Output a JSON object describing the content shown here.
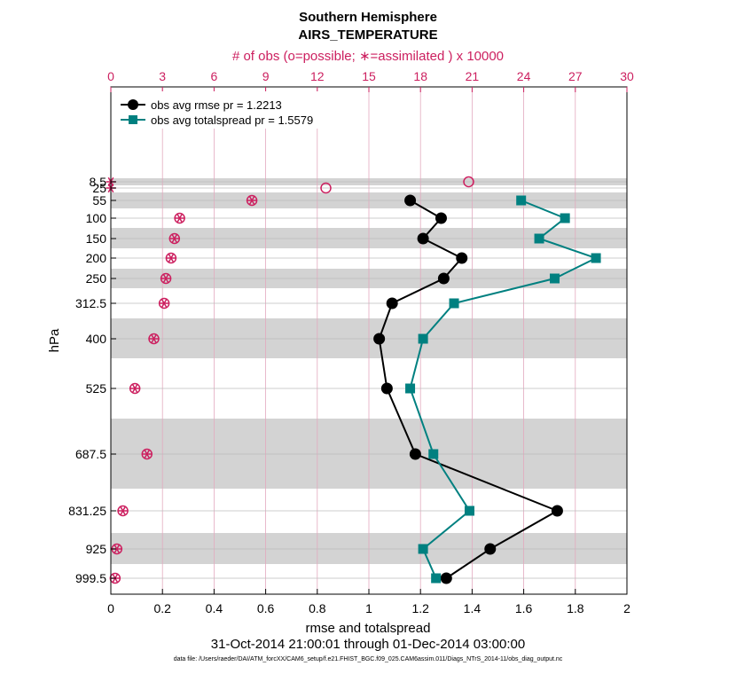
{
  "chart_data": {
    "type": "line",
    "title": "Southern Hemisphere",
    "subtitle": "AIRS_TEMPERATURE",
    "xlabel": "rmse and totalspread",
    "ylabel": "hPa",
    "xlim": [
      0,
      2
    ],
    "x_ticks": [
      "0",
      "0.2",
      "0.4",
      "0.6",
      "0.8",
      "1",
      "1.2",
      "1.4",
      "1.6",
      "1.8",
      "2"
    ],
    "top_axis": {
      "label": "# of obs (o=possible; ∗=assimilated ) x 10000",
      "lim": [
        0,
        30
      ],
      "ticks": [
        "0",
        "3",
        "6",
        "9",
        "12",
        "15",
        "18",
        "21",
        "24",
        "27",
        "30"
      ],
      "color": "#cc1f5f"
    },
    "levels": [
      "8.5",
      "25",
      "55",
      "100",
      "150",
      "200",
      "250",
      "312.5",
      "400",
      "525",
      "687.5",
      "831.25",
      "925",
      "999.5"
    ],
    "series": [
      {
        "name": "obs avg rmse pr = 1.2213",
        "color": "#000000",
        "marker": "circle",
        "levels": [
          "55",
          "100",
          "150",
          "200",
          "250",
          "312.5",
          "400",
          "525",
          "687.5",
          "831.25",
          "925",
          "999.5"
        ],
        "values": [
          1.16,
          1.28,
          1.21,
          1.36,
          1.29,
          1.09,
          1.04,
          1.07,
          1.18,
          1.73,
          1.47,
          1.3
        ]
      },
      {
        "name": "obs avg totalspread pr = 1.5579",
        "color": "#008080",
        "marker": "square",
        "levels": [
          "55",
          "100",
          "150",
          "200",
          "250",
          "312.5",
          "400",
          "525",
          "687.5",
          "831.25",
          "925",
          "999.5"
        ],
        "values": [
          1.59,
          1.76,
          1.66,
          1.88,
          1.72,
          1.33,
          1.21,
          1.16,
          1.25,
          1.39,
          1.21,
          1.26
        ]
      }
    ],
    "obs_counts": {
      "possible": {
        "levels": [
          "8.5",
          "25",
          "55",
          "100",
          "150",
          "200",
          "250",
          "312.5",
          "400",
          "525",
          "687.5",
          "831.25",
          "925",
          "999.5"
        ],
        "values": [
          20.8,
          12.5,
          8.2,
          4.0,
          3.7,
          3.5,
          3.2,
          3.1,
          2.5,
          1.4,
          2.1,
          0.7,
          0.35,
          0.25
        ]
      },
      "assimilated": {
        "levels": [
          "8.5",
          "25",
          "55",
          "100",
          "150",
          "200",
          "250",
          "312.5",
          "400",
          "525",
          "687.5",
          "831.25",
          "925",
          "999.5"
        ],
        "values": [
          0.0,
          0.0,
          8.2,
          4.0,
          3.7,
          3.5,
          3.2,
          3.1,
          2.5,
          1.4,
          2.1,
          0.7,
          0.35,
          0.25
        ]
      }
    },
    "legend_position": "top-left",
    "grid": true
  },
  "footer": {
    "date_range": "31-Oct-2014 21:00:01 through 01-Dec-2014 03:00:00",
    "data_file": "data file: /Users/raeder/DAI/ATM_forcXX/CAM6_setup/f.e21.FHIST_BGC.f09_025.CAM6assim.011/Diags_NTrS_2014-11/obs_diag_output.nc"
  },
  "colors": {
    "rmse": "#000000",
    "spread": "#008080",
    "obs": "#cc1f5f",
    "band": "#d3d3d3"
  }
}
